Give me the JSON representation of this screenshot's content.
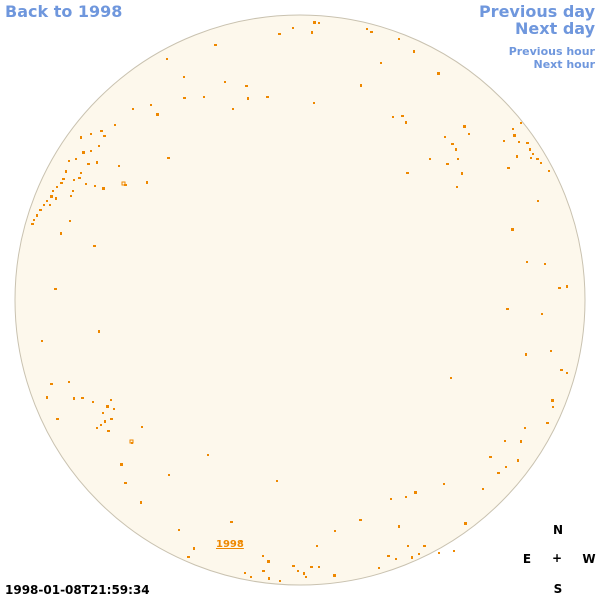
{
  "nav": {
    "back_label": "Back to 1998",
    "previous_day_label": "Previous day",
    "next_day_label": "Next day",
    "previous_hour_label": "Previous hour",
    "next_hour_label": "Next hour"
  },
  "sky": {
    "year_label": "1998",
    "disk_color": "#fdf8ec",
    "marker_color": "#ee8800",
    "link_color": "#6f97dd"
  },
  "compass": {
    "north": "N",
    "east": "E",
    "center": "+",
    "west": "W",
    "south": "S"
  },
  "timestamp": "1998-01-08T21:59:34"
}
